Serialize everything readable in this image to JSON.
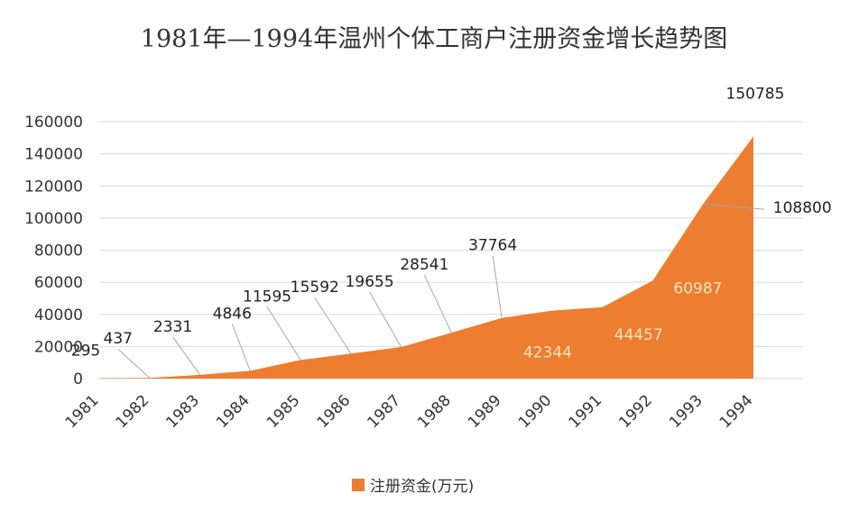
{
  "chart_data": {
    "type": "area",
    "title": "1981年—1994年温州个体工商户注册资金增长趋势图",
    "categories": [
      "1981",
      "1982",
      "1983",
      "1984",
      "1985",
      "1986",
      "1987",
      "1988",
      "1989",
      "1990",
      "1991",
      "1992",
      "1993",
      "1994"
    ],
    "series": [
      {
        "name": "注册资金(万元)",
        "color": "#ed7d31",
        "values": [
          295,
          437,
          2331,
          4846,
          11595,
          15592,
          19655,
          28541,
          37764,
          42344,
          44457,
          60987,
          108800,
          150785
        ]
      }
    ],
    "data_labels": [
      "295",
      "437",
      "2331",
      "4846",
      "11595",
      "15592",
      "19655",
      "28541",
      "37764",
      "42344",
      "44457",
      "60987",
      "108800",
      "150785"
    ],
    "y_ticks": [
      "0",
      "20000",
      "40000",
      "60000",
      "80000",
      "100000",
      "120000",
      "140000",
      "160000"
    ],
    "ylim": [
      0,
      160000
    ],
    "grid": true,
    "legend_position": "bottom",
    "legend_label": "注册资金(万元)"
  }
}
